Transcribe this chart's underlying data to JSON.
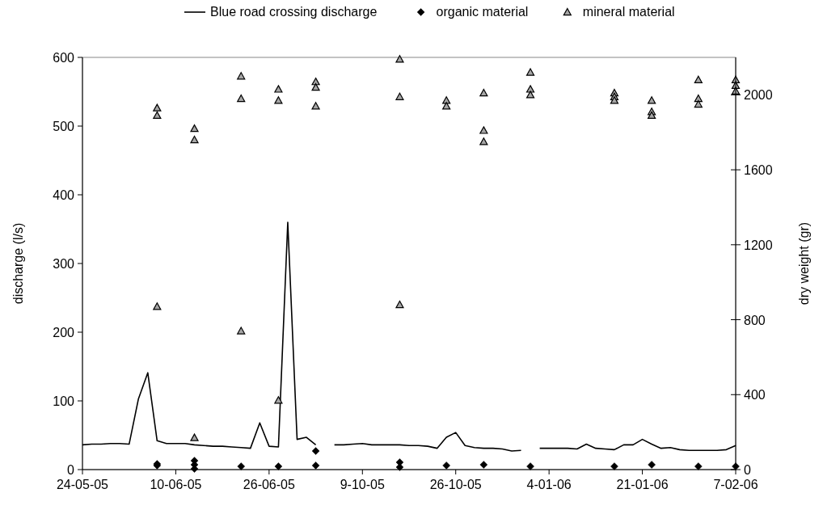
{
  "chart_data": {
    "type": "line",
    "ylabel": "discharge (l/s)",
    "y2label": "dry weight (gr)",
    "legend": "top",
    "categories": [
      "24-05-05",
      null,
      null,
      null,
      null,
      null,
      null,
      null,
      null,
      null,
      "10-06-05",
      null,
      null,
      null,
      null,
      null,
      null,
      null,
      null,
      null,
      "26-06-05",
      null,
      null,
      null,
      null,
      null,
      null,
      null,
      null,
      null,
      "9-10-05",
      null,
      null,
      null,
      null,
      null,
      null,
      null,
      null,
      null,
      "26-10-05",
      null,
      null,
      null,
      null,
      null,
      null,
      null,
      null,
      null,
      "4-01-06",
      null,
      null,
      null,
      null,
      null,
      null,
      null,
      null,
      null,
      "21-01-06",
      null,
      null,
      null,
      null,
      null,
      null,
      null,
      null,
      null,
      "7-02-06"
    ],
    "ylim": [
      0,
      600
    ],
    "yticks": [
      0,
      100,
      200,
      300,
      400,
      500,
      600
    ],
    "y2lim": [
      0,
      2200
    ],
    "y2ticks": [
      0,
      400,
      800,
      1200,
      1600,
      2000
    ],
    "series": [
      {
        "name": "Blue road crossing discharge",
        "color": "#000000",
        "line_style": "solid",
        "values": [
          36,
          37,
          37,
          38,
          38,
          37,
          103,
          141,
          42,
          38,
          38,
          38,
          36,
          35,
          34,
          34,
          33,
          32,
          31,
          68,
          34,
          33,
          360,
          44,
          47,
          36,
          null,
          36,
          36,
          37,
          38,
          36,
          36,
          36,
          36,
          35,
          35,
          34,
          31,
          47,
          54,
          35,
          32,
          31,
          31,
          30,
          27,
          28,
          null,
          31,
          31,
          31,
          31,
          30,
          37,
          31,
          30,
          29,
          36,
          36,
          44,
          37,
          31,
          32,
          29,
          28,
          28,
          28,
          28,
          29,
          35
        ]
      },
      {
        "name": "organic material",
        "type": "scatter",
        "axis": "y2",
        "marker": "diamond",
        "color": "#000000",
        "values": [
          null,
          null,
          null,
          null,
          null,
          null,
          null,
          null,
          22,
          null,
          null,
          null,
          47,
          null,
          null,
          null,
          null,
          17,
          null,
          null,
          null,
          17,
          null,
          null,
          null,
          99,
          null,
          null,
          null,
          null,
          null,
          null,
          null,
          null,
          39,
          null,
          null,
          null,
          null,
          22,
          null,
          null,
          null,
          26,
          null,
          null,
          null,
          null,
          17,
          null,
          null,
          null,
          null,
          null,
          null,
          null,
          null,
          17,
          null,
          null,
          null,
          26,
          null,
          null,
          null,
          null,
          17,
          null,
          null,
          null,
          17
        ]
      },
      {
        "type": "scatter",
        "axis": "y2",
        "marker": "diamond",
        "color": "#000000",
        "values": [
          null,
          null,
          null,
          null,
          null,
          null,
          null,
          null,
          30,
          null,
          null,
          null,
          26,
          null,
          null,
          null,
          null,
          null,
          null,
          null,
          null,
          null,
          null,
          null,
          null,
          22,
          null,
          null,
          null,
          null,
          null,
          null,
          null,
          null,
          13,
          null,
          null,
          null,
          null,
          null,
          null,
          null,
          null,
          null,
          null,
          null,
          null,
          null,
          null,
          null,
          null,
          null,
          null,
          null,
          null,
          null,
          null,
          null,
          null,
          null,
          null,
          null,
          null,
          null,
          null,
          null,
          null,
          null,
          null,
          null,
          null
        ]
      },
      {
        "type": "scatter",
        "axis": "y2",
        "marker": "diamond",
        "color": "#000000",
        "values": [
          null,
          null,
          null,
          null,
          null,
          null,
          null,
          null,
          null,
          null,
          null,
          null,
          4,
          null,
          null,
          null,
          null,
          null,
          null,
          null,
          null,
          null,
          null,
          null,
          null,
          null,
          null,
          null,
          null,
          null,
          null,
          null,
          null,
          null,
          null,
          null,
          null,
          null,
          null,
          null,
          null,
          null,
          null,
          null,
          null,
          null,
          null,
          null,
          null,
          null,
          null,
          null,
          null,
          null,
          null,
          null,
          null,
          null,
          null,
          null,
          null,
          null,
          null,
          null,
          null,
          null,
          null,
          null,
          null,
          null,
          null
        ]
      },
      {
        "name": "mineral material",
        "type": "scatter",
        "axis": "y2",
        "marker": "triangle",
        "color": "#a6a6a6",
        "values": [
          null,
          null,
          null,
          null,
          null,
          null,
          null,
          null,
          1930,
          null,
          null,
          null,
          1820,
          null,
          null,
          null,
          null,
          2100,
          null,
          null,
          null,
          2030,
          null,
          null,
          null,
          2070,
          null,
          null,
          null,
          null,
          null,
          null,
          null,
          null,
          2190,
          null,
          null,
          null,
          null,
          1970,
          null,
          null,
          null,
          2010,
          null,
          null,
          null,
          null,
          2120,
          null,
          null,
          null,
          null,
          null,
          null,
          null,
          null,
          2010,
          null,
          null,
          null,
          1970,
          null,
          null,
          null,
          null,
          2080,
          null,
          null,
          null,
          2080
        ]
      },
      {
        "type": "scatter",
        "axis": "y2",
        "marker": "triangle",
        "color": "#a6a6a6",
        "values": [
          null,
          null,
          null,
          null,
          null,
          null,
          null,
          null,
          1890,
          null,
          null,
          null,
          1760,
          null,
          null,
          null,
          null,
          1980,
          null,
          null,
          null,
          1970,
          null,
          null,
          null,
          2040,
          null,
          null,
          null,
          null,
          null,
          null,
          null,
          null,
          1990,
          null,
          null,
          null,
          null,
          1940,
          null,
          null,
          null,
          1810,
          null,
          null,
          null,
          null,
          2030,
          null,
          null,
          null,
          null,
          null,
          null,
          null,
          null,
          1990,
          null,
          null,
          null,
          1910,
          null,
          null,
          null,
          null,
          1980,
          null,
          null,
          null,
          2050
        ]
      },
      {
        "type": "scatter",
        "axis": "y2",
        "marker": "triangle",
        "color": "#a6a6a6",
        "values": [
          null,
          null,
          null,
          null,
          null,
          null,
          null,
          null,
          870,
          null,
          null,
          null,
          170,
          null,
          null,
          null,
          null,
          740,
          null,
          null,
          null,
          370,
          null,
          null,
          null,
          1940,
          null,
          null,
          null,
          null,
          null,
          null,
          null,
          null,
          880,
          null,
          null,
          null,
          null,
          null,
          null,
          null,
          null,
          1750,
          null,
          null,
          null,
          null,
          2000,
          null,
          null,
          null,
          null,
          null,
          null,
          null,
          null,
          1970,
          null,
          null,
          null,
          1890,
          null,
          null,
          null,
          null,
          1950,
          null,
          null,
          null,
          2020
        ]
      }
    ]
  }
}
